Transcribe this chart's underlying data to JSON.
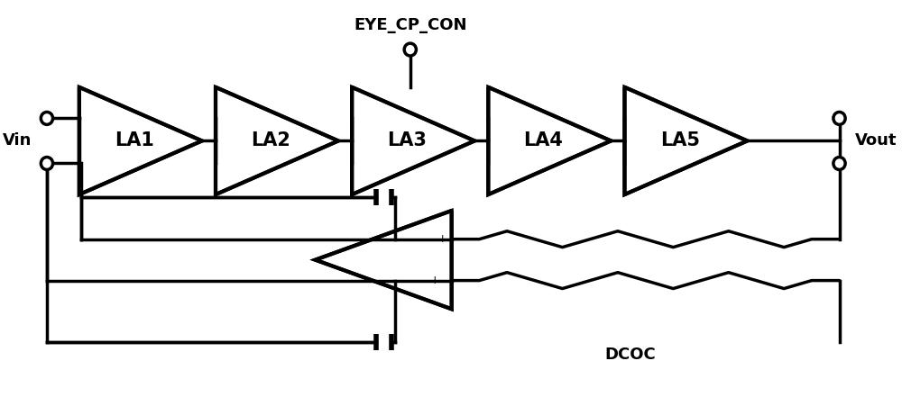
{
  "background_color": "#ffffff",
  "line_color": "#000000",
  "line_width": 2.5,
  "amplifier_labels": [
    "LA1",
    "LA2",
    "LA3",
    "LA4",
    "LA5"
  ],
  "vin_label": "Vin",
  "vout_label": "Vout",
  "eye_cp_con_label": "EYE_CP_CON",
  "dcoc_label": "DCOC",
  "label_fontsize": 13,
  "amp_label_fontsize": 15,
  "minus_plus_fontsize": 9
}
